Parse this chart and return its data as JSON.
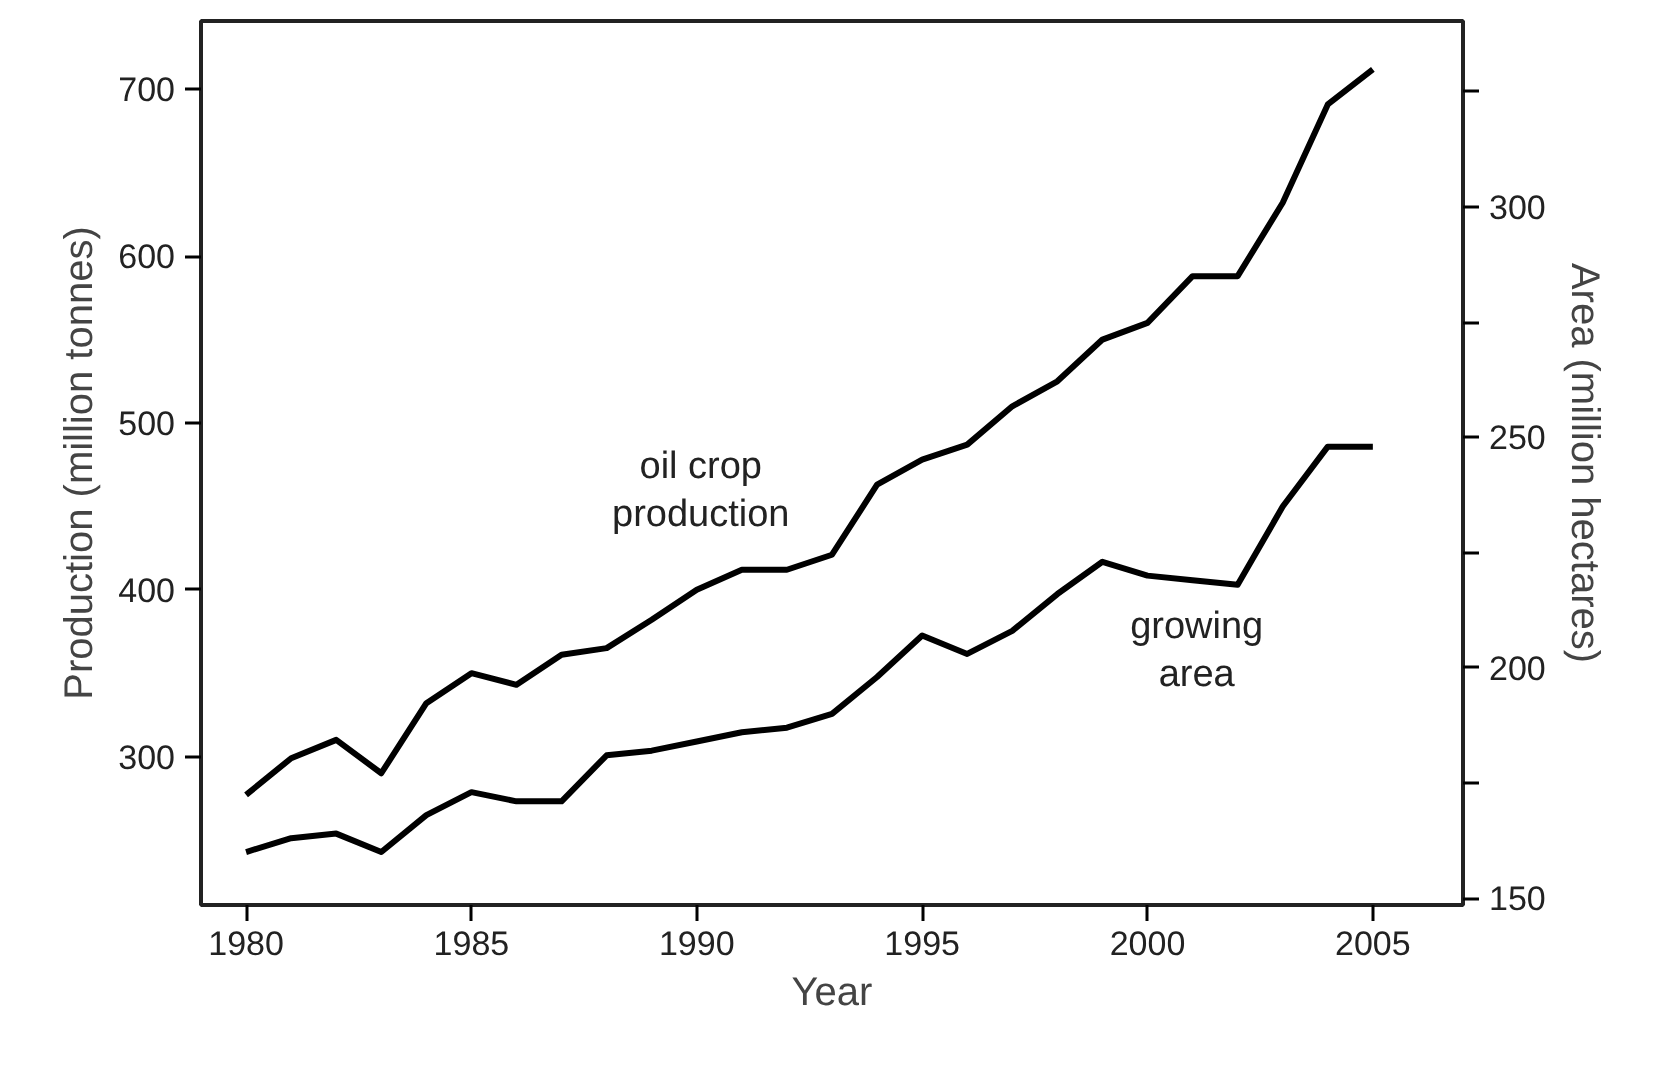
{
  "chart_data": {
    "type": "line",
    "xlabel": "Year",
    "ylabel": "Production (million tonnes)",
    "y2label": "Area (million hectares)",
    "x": [
      1980,
      1981,
      1982,
      1983,
      1984,
      1985,
      1986,
      1987,
      1988,
      1989,
      1990,
      1991,
      1992,
      1993,
      1994,
      1995,
      1996,
      1997,
      1998,
      1999,
      2000,
      2001,
      2002,
      2003,
      2004,
      2005
    ],
    "series": [
      {
        "color": "#000000",
        "values": [
          277,
          299,
          310,
          290,
          332,
          350,
          343,
          361,
          365,
          382,
          400,
          412,
          412,
          421,
          463,
          478,
          487,
          510,
          525,
          550,
          560,
          588,
          588,
          632,
          691,
          712
        ]
      },
      {
        "color": "#000000",
        "axis": "y2",
        "values": [
          160,
          163,
          164,
          160,
          168,
          173,
          171,
          171,
          181,
          182,
          184,
          186,
          187,
          190,
          198,
          207,
          203,
          208,
          216,
          223,
          220,
          219,
          218,
          235,
          248,
          248
        ]
      }
    ],
    "xlim": [
      1979,
      2007
    ],
    "xticks": [
      1980,
      1985,
      1990,
      1995,
      2000,
      2005
    ],
    "ylim": [
      211,
      741
    ],
    "yticks": [
      300,
      400,
      500,
      600,
      700
    ],
    "y2lim": [
      148.5,
      340.4
    ],
    "y2ticks": [
      150,
      {
        "value": 175,
        "label": null
      },
      200,
      {
        "value": 225,
        "label": null
      },
      250,
      {
        "value": 275,
        "label": null
      },
      300,
      {
        "value": 325,
        "label": null
      }
    ],
    "annotations": [
      "oil crop\nproduction",
      "growing\narea"
    ],
    "grid": false,
    "marker": "none",
    "line_style": "solid"
  }
}
